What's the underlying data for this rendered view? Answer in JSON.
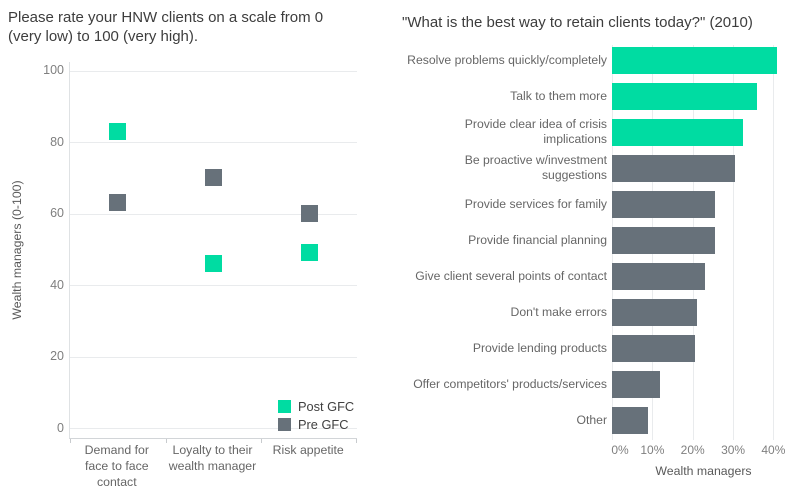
{
  "colors": {
    "post_gfc": "#00dca2",
    "pre_gfc": "#67717a",
    "gridline": "#e9ebed",
    "axis_line": "#d2d5d8",
    "title_text": "#3d3d3d",
    "tick_text": "#7f7f7f",
    "label_text": "#666666"
  },
  "chart_data": [
    {
      "type": "scatter",
      "marker": "square",
      "title": "Please rate your HNW clients on a scale from 0 (very low) to 100 (very high).",
      "ylabel": "Wealth managers (0-100)",
      "ylim": [
        0,
        100
      ],
      "yticks": [
        0,
        20,
        40,
        60,
        80,
        100
      ],
      "grid": "horizontal",
      "legend_position": "bottom-right",
      "categories": [
        "Demand for face to face contact",
        "Loyalty to their wealth manager",
        "Risk appetite"
      ],
      "categories_lines": [
        [
          "Demand for",
          "face to face",
          "contact"
        ],
        [
          "Loyalty to their",
          "wealth manager"
        ],
        [
          "Risk appetite"
        ]
      ],
      "series": [
        {
          "name": "Post GFC",
          "color": "#00dca2",
          "values": [
            83,
            46,
            49
          ]
        },
        {
          "name": "Pre GFC",
          "color": "#67717a",
          "values": [
            63,
            70,
            60
          ]
        }
      ]
    },
    {
      "type": "bar",
      "orientation": "horizontal",
      "title": "\"What is the best way to retain clients today?\" (2010)",
      "xlabel": "Wealth managers",
      "xlim": [
        0,
        45
      ],
      "grid": "vertical",
      "xticks": [
        {
          "label": "0%",
          "value": 0
        },
        {
          "label": "10%",
          "value": 10
        },
        {
          "label": "20%",
          "value": 20
        },
        {
          "label": "30%",
          "value": 30
        },
        {
          "label": "40%",
          "value": 40
        }
      ],
      "items": [
        {
          "label": "Resolve problems quickly/completely",
          "value": 41,
          "color": "#00dca2"
        },
        {
          "label": "Talk to them more",
          "value": 36,
          "color": "#00dca2"
        },
        {
          "label": "Provide clear idea of crisis implications",
          "label_lines": [
            "Provide clear idea of crisis",
            "implications"
          ],
          "value": 32.5,
          "color": "#00dca2"
        },
        {
          "label": "Be proactive w/investment suggestions",
          "label_lines": [
            "Be proactive w/investment",
            "suggestions"
          ],
          "value": 30.5,
          "color": "#67717a"
        },
        {
          "label": "Provide services for family",
          "value": 25.5,
          "color": "#67717a"
        },
        {
          "label": "Provide financial planning",
          "value": 25.5,
          "color": "#67717a"
        },
        {
          "label": "Give client several points of contact",
          "value": 23,
          "color": "#67717a"
        },
        {
          "label": "Don't make errors",
          "value": 21,
          "color": "#67717a"
        },
        {
          "label": "Provide lending products",
          "value": 20.5,
          "color": "#67717a"
        },
        {
          "label": "Offer competitors' products/services",
          "value": 12,
          "color": "#67717a"
        },
        {
          "label": "Other",
          "value": 9,
          "color": "#67717a"
        }
      ]
    }
  ]
}
